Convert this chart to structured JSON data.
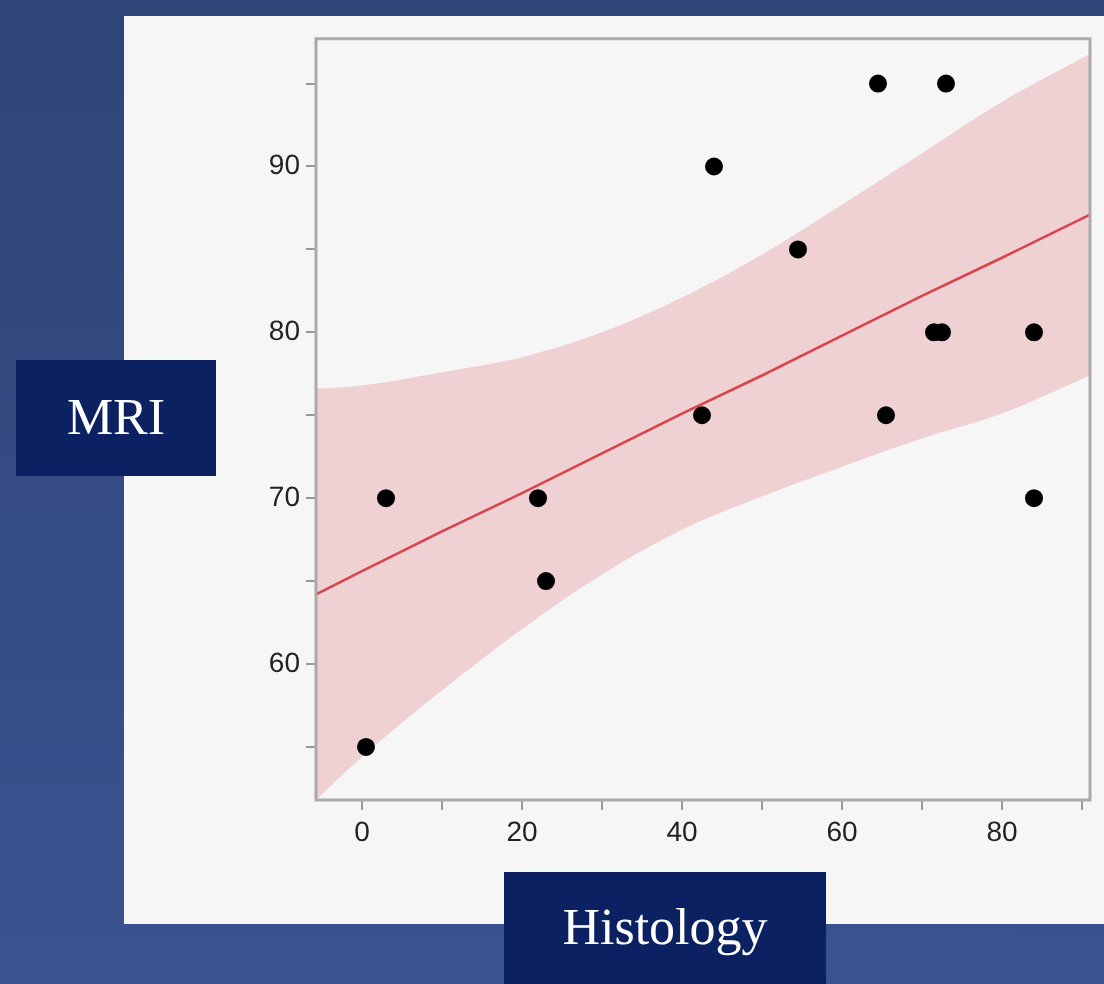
{
  "chart_data": {
    "type": "scatter",
    "xlabel": "Histology",
    "ylabel": "MRI",
    "xlim": [
      -5.75,
      91
    ],
    "ylim": [
      51.8,
      97.7
    ],
    "xticks": [
      0,
      {
        "value": 10,
        "label": null
      },
      20,
      {
        "value": 30,
        "label": null
      },
      40,
      {
        "value": 50,
        "label": null
      },
      60,
      {
        "value": 70,
        "label": null
      },
      80,
      {
        "value": 90,
        "label": null
      }
    ],
    "yticks": [
      {
        "value": 55,
        "label": null
      },
      60,
      {
        "value": 65,
        "label": null
      },
      70,
      {
        "value": 75,
        "label": null
      },
      80,
      {
        "value": 85,
        "label": null
      },
      90,
      {
        "value": 95,
        "label": null
      }
    ],
    "legend": false,
    "series": [
      {
        "type": "line",
        "marker": "none",
        "color": "#d9434a",
        "x": [
          -5.75,
          0,
          10,
          20,
          30,
          40,
          50,
          60,
          70,
          80,
          91
        ],
        "values": [
          64.2,
          65.6,
          68,
          70.3,
          72.7,
          75.1,
          77.4,
          79.8,
          82.2,
          84.5,
          87.1
        ],
        "lower": [
          51.8,
          54.4,
          58.4,
          62.1,
          65.4,
          68.1,
          70.1,
          71.9,
          73.6,
          75.1,
          77.4
        ],
        "upper": [
          76.6,
          76.8,
          77.6,
          78.5,
          80,
          82.1,
          84.7,
          87.7,
          90.8,
          93.9,
          96.8
        ]
      },
      {
        "type": "scatter",
        "marker": "circle",
        "color": "#000000",
        "x": [
          0.5,
          3,
          22,
          23,
          42.5,
          44,
          54.5,
          64.5,
          65.5,
          71.5,
          72.5,
          73,
          84,
          84
        ],
        "values": [
          55,
          70,
          70,
          65,
          75,
          90,
          85,
          95,
          75,
          80,
          80,
          95,
          80,
          70
        ]
      }
    ]
  }
}
